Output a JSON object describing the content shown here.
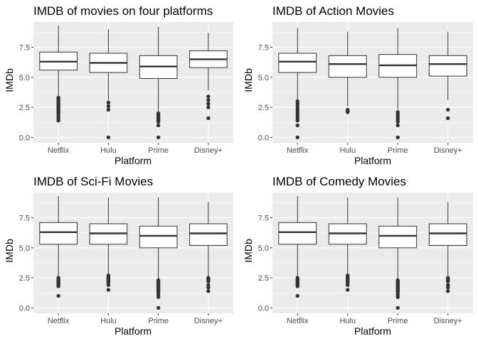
{
  "colors": {
    "panel_bg": "#ebebeb",
    "grid_major": "#ffffff",
    "box_fill": "#ffffff",
    "box_line": "#333333",
    "tick_text": "#4d4d4d"
  },
  "chart_data": [
    {
      "type": "boxplot",
      "title": "IMDB of movies on four platforms",
      "xlabel": "Platform",
      "ylabel": "IMDb",
      "categories": [
        "Netflix",
        "Hulu",
        "Prime",
        "Disney+"
      ],
      "ylim": [
        -0.45,
        9.6
      ],
      "yticks": [
        0.0,
        2.5,
        5.0,
        7.5
      ],
      "ytick_labels": [
        "0.0",
        "2.5",
        "5.0",
        "7.5"
      ],
      "grid": true,
      "boxes": [
        {
          "whisker_low": 3.4,
          "q1": 5.6,
          "median": 6.3,
          "q3": 7.1,
          "whisker_high": 9.3,
          "outliers": [
            3.3,
            3.2,
            3.1,
            3.0,
            2.9,
            2.8,
            2.7,
            2.6,
            2.5,
            2.4,
            2.3,
            2.2,
            2.1,
            2.0,
            1.8,
            1.6,
            1.4
          ]
        },
        {
          "whisker_low": 3.1,
          "q1": 5.4,
          "median": 6.2,
          "q3": 7.0,
          "whisker_high": 9.0,
          "outliers": [
            2.9,
            2.6,
            2.3,
            0.0
          ]
        },
        {
          "whisker_low": 2.1,
          "q1": 4.9,
          "median": 5.9,
          "q3": 6.8,
          "whisker_high": 9.2,
          "outliers": [
            2.0,
            1.9,
            1.8,
            1.7,
            1.6,
            1.5,
            1.4,
            1.3,
            1.0,
            0.0
          ]
        },
        {
          "whisker_low": 3.9,
          "q1": 5.8,
          "median": 6.5,
          "q3": 7.2,
          "whisker_high": 8.7,
          "outliers": [
            3.4,
            3.1,
            2.8,
            2.5,
            1.6
          ]
        }
      ]
    },
    {
      "type": "boxplot",
      "title": "IMDB of Action Movies",
      "xlabel": "Platform",
      "ylabel": "IMDb",
      "categories": [
        "Netflix",
        "Hulu",
        "Prime",
        "Disney+"
      ],
      "ylim": [
        -0.45,
        9.6
      ],
      "yticks": [
        0.0,
        2.5,
        5.0,
        7.5
      ],
      "ytick_labels": [
        "0.0",
        "2.5",
        "5.0",
        "7.5"
      ],
      "grid": true,
      "boxes": [
        {
          "whisker_low": 3.1,
          "q1": 5.4,
          "median": 6.3,
          "q3": 7.0,
          "whisker_high": 9.1,
          "outliers": [
            3.0,
            2.8,
            2.6,
            2.4,
            2.2,
            2.0,
            1.8,
            1.6,
            1.4,
            1.0,
            0.0
          ]
        },
        {
          "whisker_low": 2.6,
          "q1": 5.0,
          "median": 6.1,
          "q3": 6.8,
          "whisker_high": 8.8,
          "outliers": [
            2.3,
            2.2,
            2.1
          ]
        },
        {
          "whisker_low": 2.3,
          "q1": 5.0,
          "median": 6.0,
          "q3": 6.9,
          "whisker_high": 9.1,
          "outliers": [
            2.1,
            1.9,
            1.7,
            1.5,
            1.3,
            1.0,
            0.0
          ]
        },
        {
          "whisker_low": 3.1,
          "q1": 5.1,
          "median": 6.1,
          "q3": 6.8,
          "whisker_high": 8.8,
          "outliers": [
            2.3,
            1.6
          ]
        }
      ]
    },
    {
      "type": "boxplot",
      "title": "IMDB of Sci-Fi Movies",
      "xlabel": "Platform",
      "ylabel": "IMDb",
      "categories": [
        "Netflix",
        "Hulu",
        "Prime",
        "Disney+"
      ],
      "ylim": [
        -0.45,
        9.6
      ],
      "yticks": [
        0.0,
        2.5,
        5.0,
        7.5
      ],
      "ytick_labels": [
        "0.0",
        "2.5",
        "5.0",
        "7.5"
      ],
      "grid": true,
      "boxes": [
        {
          "whisker_low": 2.6,
          "q1": 5.3,
          "median": 6.3,
          "q3": 7.1,
          "whisker_high": 9.3,
          "outliers": [
            2.5,
            2.4,
            2.3,
            2.2,
            2.1,
            2.0,
            1.9,
            1.8,
            1.0
          ]
        },
        {
          "whisker_low": 2.8,
          "q1": 5.3,
          "median": 6.2,
          "q3": 7.0,
          "whisker_high": 9.2,
          "outliers": [
            2.7,
            2.6,
            2.5,
            2.4,
            2.3,
            2.2,
            2.1,
            1.9,
            1.5
          ]
        },
        {
          "whisker_low": 2.4,
          "q1": 5.0,
          "median": 6.0,
          "q3": 6.8,
          "whisker_high": 9.2,
          "outliers": [
            2.3,
            2.2,
            2.1,
            2.0,
            1.9,
            1.8,
            1.7,
            1.6,
            1.5,
            1.4,
            1.3,
            1.1,
            0.9,
            0.0
          ]
        },
        {
          "whisker_low": 2.6,
          "q1": 5.2,
          "median": 6.2,
          "q3": 7.0,
          "whisker_high": 8.8,
          "outliers": [
            2.5,
            2.4,
            2.3,
            2.2,
            1.9,
            1.7,
            1.4
          ]
        }
      ]
    },
    {
      "type": "boxplot",
      "title": "IMDB of Comedy Movies",
      "xlabel": "Platform",
      "ylabel": "IMDb",
      "categories": [
        "Netflix",
        "Hulu",
        "Prime",
        "Disney+"
      ],
      "ylim": [
        -0.45,
        9.6
      ],
      "yticks": [
        0.0,
        2.5,
        5.0,
        7.5
      ],
      "ytick_labels": [
        "0.0",
        "2.5",
        "5.0",
        "7.5"
      ],
      "grid": true,
      "boxes": [
        {
          "whisker_low": 2.6,
          "q1": 5.3,
          "median": 6.3,
          "q3": 7.1,
          "whisker_high": 9.3,
          "outliers": [
            2.5,
            2.4,
            2.3,
            2.2,
            2.1,
            2.0,
            1.9,
            1.8,
            1.0
          ]
        },
        {
          "whisker_low": 2.8,
          "q1": 5.3,
          "median": 6.2,
          "q3": 7.0,
          "whisker_high": 9.2,
          "outliers": [
            2.7,
            2.6,
            2.5,
            2.4,
            2.3,
            2.2,
            2.1,
            1.9,
            1.5
          ]
        },
        {
          "whisker_low": 2.4,
          "q1": 5.0,
          "median": 6.0,
          "q3": 6.8,
          "whisker_high": 9.2,
          "outliers": [
            2.3,
            2.2,
            2.1,
            2.0,
            1.9,
            1.8,
            1.7,
            1.6,
            1.5,
            1.4,
            1.3,
            1.1,
            0.9,
            0.0
          ]
        },
        {
          "whisker_low": 2.6,
          "q1": 5.2,
          "median": 6.2,
          "q3": 7.0,
          "whisker_high": 8.8,
          "outliers": [
            2.5,
            2.4,
            2.3,
            2.2,
            1.9,
            1.7,
            1.4
          ]
        }
      ]
    }
  ]
}
